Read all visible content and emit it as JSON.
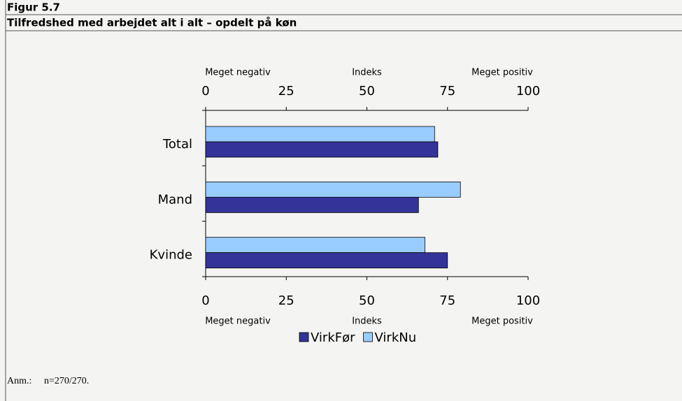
{
  "figure_label": "Figur 5.7",
  "note_label": "Anm.:",
  "note_text": "n=270/270.",
  "chart_data": {
    "type": "hbar",
    "title": "Tilfredshed med arbejdet alt i alt – opdelt på køn",
    "categories": [
      "Total",
      "Mand",
      "Kvinde"
    ],
    "series": [
      {
        "name": "VirkFør",
        "color": "#333399",
        "values": [
          72,
          66,
          75
        ]
      },
      {
        "name": "VirkNu",
        "color": "#99ccff",
        "values": [
          71,
          79,
          68
        ]
      }
    ],
    "xlim": [
      0,
      100
    ],
    "xticks": [
      0,
      25,
      50,
      75,
      100
    ],
    "axis_labels": [
      "Meget negativ",
      "Indeks",
      "Meget positiv"
    ],
    "legend": "bottom"
  }
}
